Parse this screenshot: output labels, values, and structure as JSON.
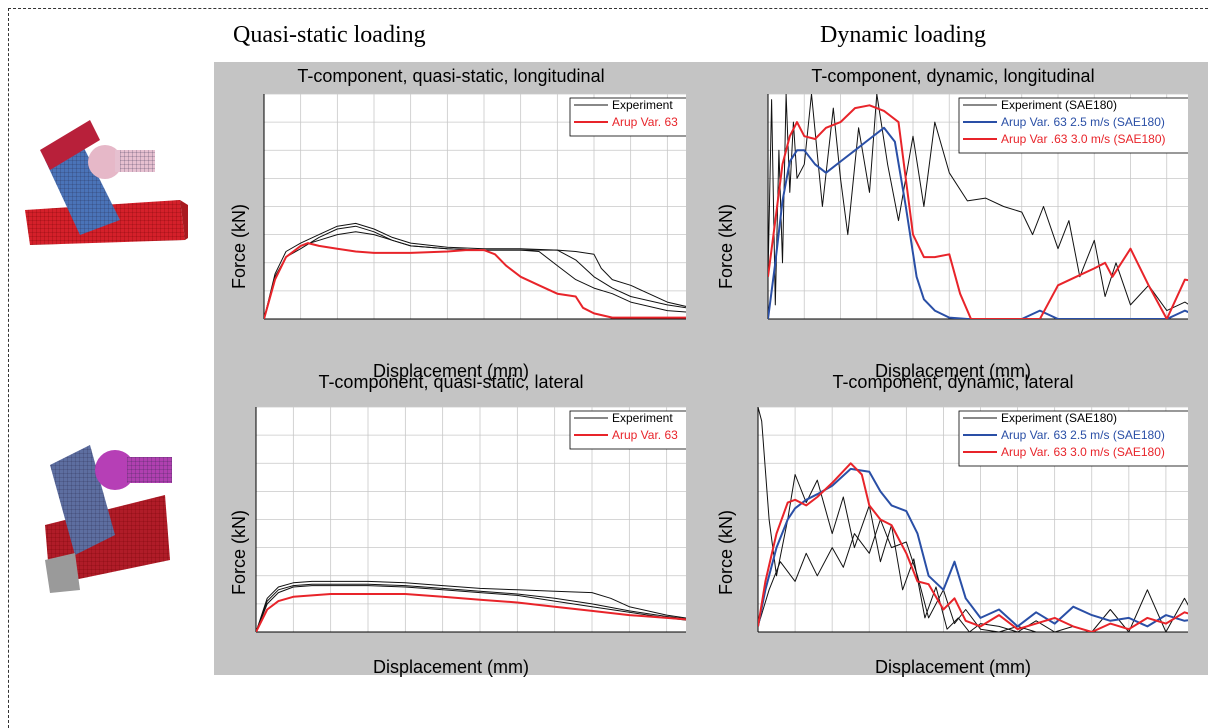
{
  "headings": {
    "quasi_static": "Quasi-static loading",
    "dynamic": "Dynamic loading"
  },
  "colors": {
    "experiment": "#111111",
    "arup_red": "#e8242a",
    "arup_blue": "#2a4fa6",
    "panel_grey": "#c4c4c4",
    "grid": "#c8c8c8"
  },
  "chart_data": [
    {
      "type": "line",
      "title": "T-component, quasi-static, longitudinal",
      "xlabel": "Displacement (mm)",
      "ylabel": "Force (kN)",
      "xlim": [
        0,
        12
      ],
      "ylim": [
        0,
        8
      ],
      "grid": true,
      "legend": "top-right",
      "series": [
        {
          "name": "Experiment",
          "color": "#111111",
          "x": [
            0,
            0.3,
            0.6,
            1,
            1.5,
            2,
            2.5,
            3,
            3.5,
            4,
            5,
            6,
            7,
            7.5,
            8,
            8.5,
            9,
            9.5,
            10,
            11,
            12
          ],
          "y": [
            0,
            1.5,
            2.2,
            2.5,
            2.9,
            3.2,
            3.3,
            3.1,
            2.8,
            2.6,
            2.5,
            2.45,
            2.45,
            2.4,
            1.9,
            1.4,
            1.1,
            0.9,
            0.6,
            0.3,
            0.2
          ]
        },
        {
          "name": "",
          "color": "#111111",
          "x": [
            0,
            0.3,
            0.6,
            1,
            1.5,
            2,
            2.5,
            3,
            3.5,
            4,
            5,
            6,
            7,
            8,
            8.5,
            9,
            9.5,
            10,
            11,
            12
          ],
          "y": [
            0,
            1.6,
            2.4,
            2.7,
            3.0,
            3.3,
            3.4,
            3.2,
            2.9,
            2.7,
            2.55,
            2.5,
            2.5,
            2.45,
            2.1,
            1.5,
            1.1,
            0.8,
            0.5,
            0.3
          ]
        },
        {
          "name": "",
          "color": "#111111",
          "x": [
            0,
            0.3,
            0.6,
            1,
            1.5,
            2,
            2.5,
            3,
            3.5,
            4,
            5,
            6,
            7,
            8,
            8.5,
            9,
            9.2,
            9.5,
            10,
            11,
            12
          ],
          "y": [
            0,
            1.5,
            2.2,
            2.6,
            2.8,
            3.0,
            3.1,
            3.0,
            2.8,
            2.6,
            2.5,
            2.45,
            2.45,
            2.45,
            2.4,
            2.3,
            1.8,
            1.4,
            1.2,
            0.6,
            0.3
          ]
        },
        {
          "name": "Arup Var. 63",
          "color": "#e8242a",
          "x": [
            0,
            0.3,
            0.6,
            1,
            1.2,
            1.5,
            2,
            2.5,
            3,
            4,
            5,
            5.5,
            6,
            6.3,
            6.6,
            7,
            7.5,
            8,
            8.5,
            8.7,
            9,
            9.5,
            12
          ],
          "y": [
            0,
            1.4,
            2.2,
            2.6,
            2.7,
            2.6,
            2.5,
            2.4,
            2.35,
            2.35,
            2.4,
            2.45,
            2.45,
            2.3,
            1.9,
            1.5,
            1.2,
            0.9,
            0.8,
            0.4,
            0.2,
            0.05,
            0.05
          ]
        }
      ]
    },
    {
      "type": "line",
      "title": "T-component, dynamic, longitudinal",
      "xlabel": "Displacement (mm)",
      "ylabel": "Force (kN)",
      "xlim": [
        0,
        12
      ],
      "ylim": [
        0,
        8
      ],
      "grid": true,
      "legend": "top-right",
      "series": [
        {
          "name": "Experiment (SAE180)",
          "color": "#111111",
          "x": [
            0,
            0.1,
            0.2,
            0.3,
            0.4,
            0.5,
            0.6,
            0.7,
            0.8,
            1,
            1.2,
            1.5,
            1.8,
            2,
            2.2,
            2.5,
            2.8,
            3,
            3.3,
            3.6,
            4,
            4.3,
            4.6,
            5,
            5.5,
            6,
            6.5,
            7,
            7.3,
            7.6,
            8,
            8.3,
            8.6,
            9,
            9.3,
            9.6,
            10,
            10.5,
            11,
            11.5,
            12
          ],
          "y": [
            1.5,
            7.8,
            0.5,
            6,
            2,
            8,
            4.5,
            7,
            5,
            5.5,
            8,
            4,
            7.5,
            5,
            3,
            6.8,
            4.5,
            8,
            5.5,
            3.5,
            6.5,
            4,
            7,
            5.2,
            4.2,
            4.3,
            4,
            3.8,
            3,
            4,
            2.5,
            3.5,
            1.5,
            2.8,
            0.8,
            2,
            0.5,
            1.2,
            0.3,
            0.6,
            0.2
          ]
        },
        {
          "name": "Arup Var. 63 2.5 m/s (SAE180)",
          "color": "#2a4fa6",
          "x": [
            0,
            0.2,
            0.4,
            0.6,
            0.8,
            1,
            1.3,
            1.6,
            2,
            2.4,
            2.8,
            3.2,
            3.5,
            3.8,
            4.1,
            4.3,
            4.6,
            5,
            5.5,
            6,
            6.5,
            7,
            7.5,
            8,
            8.5,
            9,
            9.5,
            10,
            10.5,
            11,
            11.5,
            12
          ],
          "y": [
            0,
            2,
            4.2,
            5.6,
            6,
            6,
            5.5,
            5.2,
            5.6,
            6.0,
            6.4,
            6.8,
            6.3,
            4,
            1.5,
            0.7,
            0.3,
            0.05,
            0,
            0,
            0,
            0,
            0.3,
            0,
            0,
            0,
            0,
            0,
            0,
            0,
            0.3,
            0
          ]
        },
        {
          "name": "Arup Var .63 3.0 m/s (SAE180)",
          "color": "#e8242a",
          "x": [
            0,
            0.2,
            0.4,
            0.6,
            0.8,
            1,
            1.3,
            1.6,
            2,
            2.4,
            2.8,
            3.2,
            3.6,
            4,
            4.3,
            4.6,
            5,
            5.3,
            5.6,
            6,
            6.5,
            7,
            7.5,
            8,
            8.5,
            9,
            9.3,
            9.5,
            10,
            10.5,
            11,
            11.5,
            12
          ],
          "y": [
            1.5,
            3.5,
            5.5,
            6.5,
            7,
            6.5,
            6.4,
            6.8,
            7,
            7.5,
            7.6,
            7.4,
            7,
            3,
            2.2,
            2.2,
            2.3,
            0.9,
            0,
            0,
            0,
            0,
            0,
            1.2,
            1.5,
            1.8,
            2.0,
            1.5,
            2.5,
            1.2,
            0,
            1.4,
            1.3
          ]
        }
      ]
    },
    {
      "type": "line",
      "title": "T-component, quasi-static, lateral",
      "xlabel": "Displacement (mm)",
      "ylabel": "Force (kN)",
      "xlim": [
        0,
        12
      ],
      "ylim": [
        0,
        8
      ],
      "grid": true,
      "legend": "top-right",
      "series": [
        {
          "name": "Experiment",
          "color": "#111111",
          "x": [
            0,
            0.3,
            0.6,
            1,
            1.5,
            2,
            3,
            4,
            5,
            6,
            7,
            8,
            9,
            9.5,
            10,
            11,
            12
          ],
          "y": [
            0,
            1.2,
            1.6,
            1.75,
            1.8,
            1.8,
            1.8,
            1.75,
            1.65,
            1.55,
            1.5,
            1.45,
            1.4,
            1.2,
            0.9,
            0.6,
            0.4
          ]
        },
        {
          "name": "",
          "color": "#111111",
          "x": [
            0,
            0.3,
            0.6,
            1,
            1.5,
            2,
            3,
            4,
            5,
            6,
            7,
            8,
            9,
            10,
            11,
            12
          ],
          "y": [
            0,
            1.0,
            1.4,
            1.6,
            1.65,
            1.65,
            1.65,
            1.6,
            1.5,
            1.4,
            1.3,
            1.1,
            0.9,
            0.7,
            0.5,
            0.35
          ]
        },
        {
          "name": "",
          "color": "#111111",
          "x": [
            0,
            0.3,
            0.6,
            1,
            1.5,
            2,
            3,
            4,
            5,
            6,
            7,
            8,
            9,
            10,
            11,
            12
          ],
          "y": [
            0,
            1.1,
            1.5,
            1.65,
            1.7,
            1.7,
            1.7,
            1.65,
            1.55,
            1.45,
            1.35,
            1.2,
            1.0,
            0.75,
            0.55,
            0.4
          ]
        },
        {
          "name": "Arup Var. 63",
          "color": "#e8242a",
          "x": [
            0,
            0.3,
            0.6,
            1,
            1.5,
            2,
            3,
            4,
            5,
            6,
            7,
            8,
            9,
            10,
            11,
            12
          ],
          "y": [
            0,
            0.8,
            1.1,
            1.25,
            1.3,
            1.35,
            1.35,
            1.35,
            1.25,
            1.15,
            1.05,
            0.9,
            0.75,
            0.6,
            0.5,
            0.4
          ]
        }
      ]
    },
    {
      "type": "line",
      "title": "T-component, dynamic, lateral",
      "xlabel": "Displacement (mm)",
      "ylabel": "Force (kN)",
      "xlim": [
        0,
        12
      ],
      "ylim": [
        0,
        8
      ],
      "grid": true,
      "legend": "top-right",
      "series": [
        {
          "name": "Experiment (SAE180)",
          "color": "#111111",
          "x": [
            0,
            0.1,
            0.3,
            0.5,
            0.8,
            1,
            1.3,
            1.6,
            2,
            2.3,
            2.6,
            3,
            3.3,
            3.6,
            3.9,
            4.2,
            4.5,
            4.8,
            5.1,
            5.4,
            5.7,
            6,
            6.5,
            7,
            7.5,
            8,
            8.5,
            9,
            9.5,
            10,
            10.5,
            11,
            11.5,
            12
          ],
          "y": [
            8,
            7.5,
            4,
            2,
            4,
            5.6,
            4.6,
            5.4,
            3.5,
            4.8,
            3.0,
            4.5,
            2.5,
            3.8,
            1.5,
            2.6,
            0.5,
            1.6,
            0.1,
            0.5,
            0,
            0.3,
            0.2,
            0,
            0.4,
            0,
            0.2,
            0,
            0.8,
            0,
            1.5,
            0,
            1.2,
            0
          ]
        },
        {
          "name": "",
          "color": "#111111",
          "x": [
            0,
            0.3,
            0.6,
            1,
            1.3,
            1.6,
            2,
            2.3,
            2.6,
            3,
            3.3,
            3.6,
            4,
            4.3,
            4.6,
            5,
            5.3,
            5.6,
            6,
            6.5,
            7,
            7.5,
            8,
            12
          ],
          "y": [
            0.2,
            1.5,
            2.5,
            1.8,
            2.8,
            2.0,
            3.0,
            2.3,
            3.5,
            2.8,
            4.0,
            3.0,
            3.2,
            2.0,
            0.5,
            1.5,
            0.3,
            0.8,
            0.1,
            0,
            0.2,
            0,
            0,
            0
          ]
        },
        {
          "name": "Arup Var. 63 2.5 m/s (SAE180)",
          "color": "#2a4fa6",
          "x": [
            0,
            0.2,
            0.5,
            0.8,
            1,
            1.3,
            1.6,
            2,
            2.5,
            3,
            3.3,
            3.6,
            4,
            4.3,
            4.6,
            5,
            5.3,
            5.6,
            6,
            6.5,
            7,
            7.5,
            8,
            8.5,
            9,
            9.5,
            10,
            10.5,
            11,
            11.5,
            12
          ],
          "y": [
            0.2,
            1.5,
            3.0,
            4.0,
            4.4,
            4.7,
            4.9,
            5.2,
            5.8,
            5.7,
            5.0,
            4.5,
            4.3,
            3.5,
            2.0,
            1.5,
            2.5,
            1.2,
            0.5,
            0.8,
            0.2,
            0.7,
            0.3,
            0.9,
            0.6,
            0.4,
            0.5,
            0.2,
            0.6,
            0.4,
            0.5
          ]
        },
        {
          "name": "Arup Var. 63 3.0 m/s (SAE180)",
          "color": "#e8242a",
          "x": [
            0,
            0.2,
            0.5,
            0.8,
            1,
            1.3,
            1.6,
            2,
            2.5,
            2.8,
            3,
            3.3,
            3.6,
            4,
            4.3,
            4.6,
            5,
            5.3,
            5.6,
            6,
            6.5,
            7,
            7.5,
            8,
            8.5,
            9,
            9.5,
            10,
            10.5,
            11,
            11.5,
            12
          ],
          "y": [
            0.2,
            1.8,
            3.5,
            4.6,
            4.7,
            4.5,
            4.8,
            5.3,
            6.0,
            5.6,
            4.5,
            4.0,
            3.8,
            2.8,
            1.8,
            1.7,
            0.8,
            1.2,
            0.4,
            0.2,
            0.6,
            0.1,
            0.3,
            0.5,
            0.2,
            0,
            0.3,
            0.1,
            0.5,
            0.3,
            0.7,
            0.5
          ]
        }
      ]
    }
  ]
}
